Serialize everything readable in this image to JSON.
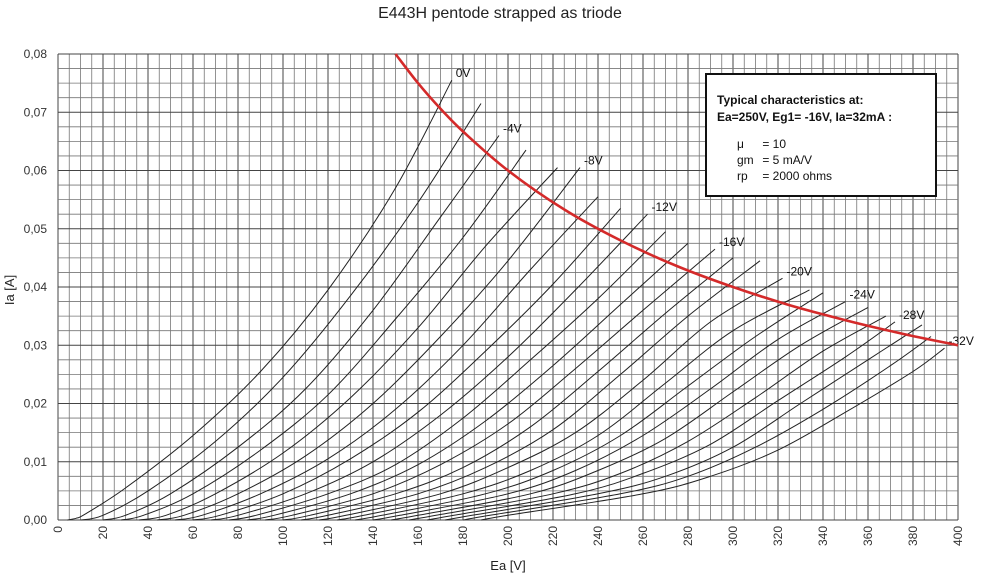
{
  "chart_data": {
    "type": "line",
    "title": "E443H pentode strapped as triode",
    "xlabel": "Ea [V]",
    "ylabel": "Ia [A]",
    "xlim": [
      0,
      400
    ],
    "ylim": [
      0,
      0.08
    ],
    "grid": true,
    "x_ticks": [
      "0",
      "20",
      "40",
      "60",
      "80",
      "100",
      "120",
      "140",
      "160",
      "180",
      "200",
      "220",
      "240",
      "260",
      "280",
      "300",
      "320",
      "340",
      "360",
      "380",
      "400"
    ],
    "y_ticks": [
      "0,00",
      "0,01",
      "0,02",
      "0,03",
      "0,04",
      "0,05",
      "0,06",
      "0,07",
      "0,08"
    ],
    "series": [
      {
        "name": "0V",
        "x": [
          4,
          8,
          12,
          30,
          60,
          90,
          120,
          150,
          175
        ],
        "y": [
          0,
          0.0003,
          0.001,
          0.0055,
          0.0145,
          0.0255,
          0.0395,
          0.057,
          0.0755
        ]
      },
      {
        "name": "",
        "x": [
          10,
          20,
          40,
          70,
          100,
          130,
          160,
          188
        ],
        "y": [
          0,
          0.0008,
          0.005,
          0.0135,
          0.0245,
          0.0385,
          0.0545,
          0.0715
        ]
      },
      {
        "name": "-4V",
        "x": [
          20,
          30,
          50,
          80,
          110,
          140,
          170,
          196
        ],
        "y": [
          0,
          0.0008,
          0.0045,
          0.0125,
          0.0225,
          0.036,
          0.052,
          0.066
        ]
      },
      {
        "name": "",
        "x": [
          28,
          38,
          60,
          90,
          120,
          150,
          180,
          208
        ],
        "y": [
          0,
          0.0008,
          0.0045,
          0.012,
          0.0215,
          0.0345,
          0.0485,
          0.0635
        ]
      },
      {
        "name": "",
        "x": [
          36,
          48,
          70,
          100,
          130,
          160,
          190,
          222
        ],
        "y": [
          0,
          0.0008,
          0.0045,
          0.0115,
          0.021,
          0.033,
          0.047,
          0.0605
        ]
      },
      {
        "name": "-8V",
        "x": [
          44,
          56,
          80,
          110,
          140,
          170,
          200,
          232
        ],
        "y": [
          0,
          0.0008,
          0.0045,
          0.011,
          0.02,
          0.0315,
          0.0445,
          0.0605
        ]
      },
      {
        "name": "",
        "x": [
          52,
          64,
          90,
          120,
          150,
          180,
          210,
          240
        ],
        "y": [
          0,
          0.0008,
          0.0045,
          0.0105,
          0.019,
          0.03,
          0.043,
          0.0555
        ]
      },
      {
        "name": "",
        "x": [
          60,
          72,
          100,
          130,
          160,
          190,
          220,
          250
        ],
        "y": [
          0,
          0.0008,
          0.0045,
          0.0105,
          0.0185,
          0.029,
          0.0405,
          0.0535
        ]
      },
      {
        "name": "-12V",
        "x": [
          68,
          80,
          110,
          140,
          170,
          200,
          230,
          262
        ],
        "y": [
          0,
          0.0008,
          0.0045,
          0.01,
          0.018,
          0.028,
          0.0395,
          0.0525
        ]
      },
      {
        "name": "",
        "x": [
          76,
          88,
          120,
          150,
          180,
          210,
          240,
          270
        ],
        "y": [
          0,
          0.0008,
          0.0045,
          0.0095,
          0.0175,
          0.0275,
          0.038,
          0.0495
        ]
      },
      {
        "name": "",
        "x": [
          84,
          96,
          130,
          160,
          190,
          220,
          250,
          280
        ],
        "y": [
          0,
          0.0008,
          0.0045,
          0.0095,
          0.017,
          0.0265,
          0.037,
          0.0475
        ]
      },
      {
        "name": "-16V",
        "x": [
          92,
          104,
          140,
          170,
          200,
          230,
          260,
          292
        ],
        "y": [
          0,
          0.0008,
          0.0045,
          0.0095,
          0.0165,
          0.026,
          0.036,
          0.0465
        ]
      },
      {
        "name": "",
        "x": [
          100,
          112,
          150,
          180,
          210,
          240,
          270,
          300
        ],
        "y": [
          0,
          0.0008,
          0.0045,
          0.009,
          0.016,
          0.0255,
          0.0355,
          0.045
        ]
      },
      {
        "name": "",
        "x": [
          108,
          120,
          160,
          190,
          220,
          250,
          280,
          312
        ],
        "y": [
          0,
          0.0008,
          0.0045,
          0.009,
          0.0155,
          0.025,
          0.035,
          0.0445
        ]
      },
      {
        "name": "-20V",
        "x": [
          116,
          128,
          170,
          200,
          230,
          260,
          290,
          322
        ],
        "y": [
          0,
          0.0008,
          0.0045,
          0.009,
          0.015,
          0.024,
          0.034,
          0.0415
        ]
      },
      {
        "name": "",
        "x": [
          124,
          136,
          180,
          210,
          240,
          270,
          300,
          334
        ],
        "y": [
          0,
          0.0008,
          0.0045,
          0.0085,
          0.0145,
          0.0235,
          0.0325,
          0.0395
        ]
      },
      {
        "name": "",
        "x": [
          132,
          144,
          190,
          220,
          250,
          280,
          310,
          340
        ],
        "y": [
          0,
          0.0008,
          0.0045,
          0.0085,
          0.0145,
          0.023,
          0.0315,
          0.039
        ]
      },
      {
        "name": "-24V",
        "x": [
          140,
          152,
          200,
          230,
          260,
          290,
          320,
          350
        ],
        "y": [
          0,
          0.0008,
          0.0045,
          0.0085,
          0.0145,
          0.0225,
          0.031,
          0.0375
        ]
      },
      {
        "name": "",
        "x": [
          148,
          160,
          210,
          240,
          270,
          300,
          330,
          360
        ],
        "y": [
          0,
          0.0008,
          0.0045,
          0.0085,
          0.014,
          0.022,
          0.03,
          0.0365
        ]
      },
      {
        "name": "",
        "x": [
          156,
          168,
          220,
          250,
          280,
          310,
          340,
          368
        ],
        "y": [
          0,
          0.0008,
          0.0045,
          0.008,
          0.0135,
          0.021,
          0.029,
          0.035
        ]
      },
      {
        "name": "-28V",
        "x": [
          164,
          176,
          230,
          260,
          290,
          320,
          350,
          372
        ],
        "y": [
          0,
          0.0008,
          0.0045,
          0.008,
          0.013,
          0.0205,
          0.028,
          0.034
        ]
      },
      {
        "name": "",
        "x": [
          172,
          184,
          240,
          270,
          300,
          330,
          360,
          384
        ],
        "y": [
          0,
          0.0008,
          0.0045,
          0.0075,
          0.0125,
          0.02,
          0.0275,
          0.0335
        ]
      },
      {
        "name": "",
        "x": [
          180,
          192,
          250,
          280,
          310,
          340,
          370,
          388
        ],
        "y": [
          0,
          0.0008,
          0.0045,
          0.0075,
          0.0125,
          0.019,
          0.0265,
          0.0315
        ]
      },
      {
        "name": "-32V",
        "x": [
          188,
          200,
          260,
          290,
          320,
          350,
          380,
          394
        ],
        "y": [
          0,
          0.0008,
          0.0045,
          0.0075,
          0.012,
          0.0185,
          0.0255,
          0.0295
        ]
      }
    ],
    "anode_dissipation_curve": {
      "x": [
        150,
        160,
        170,
        180,
        200,
        225,
        250,
        275,
        300,
        325,
        350,
        375,
        400
      ],
      "y": [
        0.08,
        0.075,
        0.0706,
        0.0667,
        0.06,
        0.0533,
        0.048,
        0.0436,
        0.04,
        0.0369,
        0.0343,
        0.032,
        0.03
      ],
      "color": "#d42a2a"
    }
  },
  "info_box": {
    "heading_line1": "Typical characteristics at:",
    "heading_line2": "Ea=250V, Eg1= -16V, Ia=32mA :",
    "params": [
      {
        "name": "μ",
        "value": "= 10"
      },
      {
        "name": "gm",
        "value": "= 5 mA/V"
      },
      {
        "name": "rp",
        "value": "= 2000 ohms"
      }
    ]
  }
}
